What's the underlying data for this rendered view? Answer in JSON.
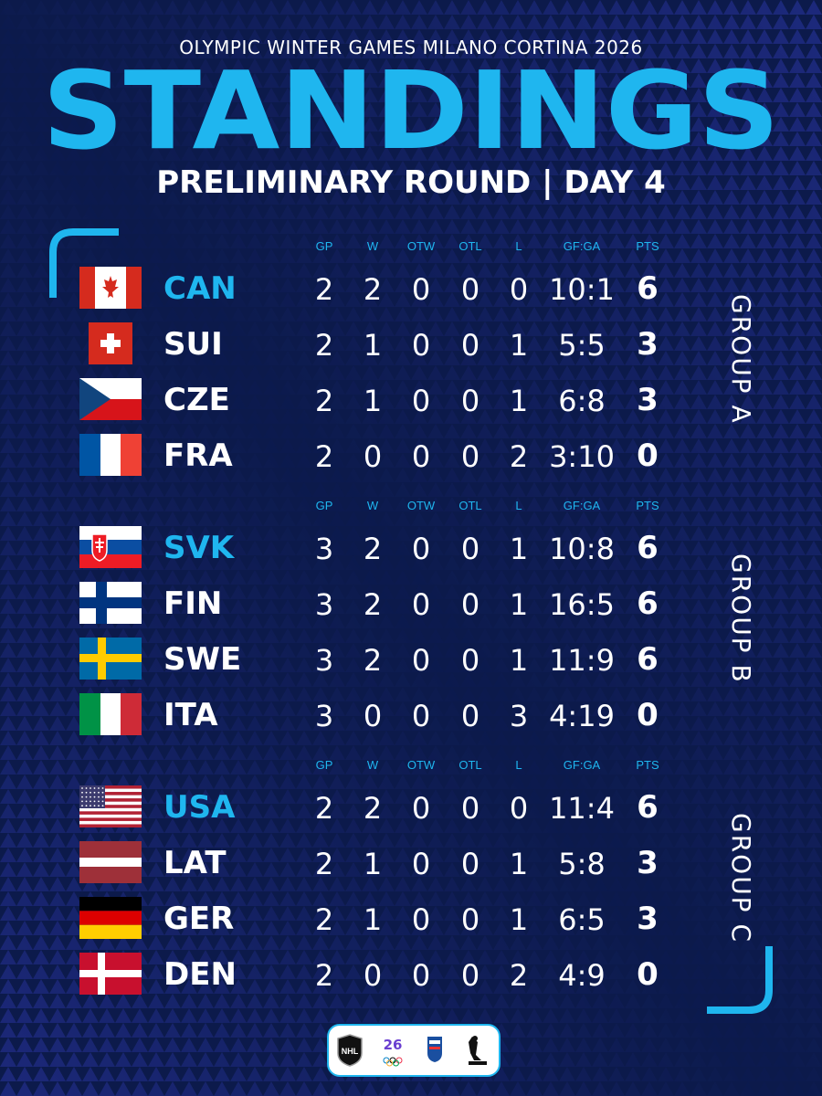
{
  "kicker": "OLYMPIC WINTER GAMES MILANO CORTINA 2026",
  "title": "STANDINGS",
  "subtitle": "PRELIMINARY ROUND | DAY 4",
  "columns": [
    "GP",
    "W",
    "OTW",
    "OTL",
    "L",
    "GF:GA",
    "PTS"
  ],
  "colors": {
    "accent": "#1fb6ef",
    "background": "#0c1a4b",
    "text": "#ffffff"
  },
  "groups": [
    {
      "label": "GROUP A",
      "teams": [
        {
          "code": "CAN",
          "flag": "canada-flag",
          "gp": "2",
          "w": "2",
          "otw": "0",
          "otl": "0",
          "l": "0",
          "gfga": "10:1",
          "pts": "6"
        },
        {
          "code": "SUI",
          "flag": "switzerland-flag",
          "gp": "2",
          "w": "1",
          "otw": "0",
          "otl": "0",
          "l": "1",
          "gfga": "5:5",
          "pts": "3"
        },
        {
          "code": "CZE",
          "flag": "czechia-flag",
          "gp": "2",
          "w": "1",
          "otw": "0",
          "otl": "0",
          "l": "1",
          "gfga": "6:8",
          "pts": "3"
        },
        {
          "code": "FRA",
          "flag": "france-flag",
          "gp": "2",
          "w": "0",
          "otw": "0",
          "otl": "0",
          "l": "2",
          "gfga": "3:10",
          "pts": "0"
        }
      ]
    },
    {
      "label": "GROUP B",
      "teams": [
        {
          "code": "SVK",
          "flag": "slovakia-flag",
          "gp": "3",
          "w": "2",
          "otw": "0",
          "otl": "0",
          "l": "1",
          "gfga": "10:8",
          "pts": "6"
        },
        {
          "code": "FIN",
          "flag": "finland-flag",
          "gp": "3",
          "w": "2",
          "otw": "0",
          "otl": "0",
          "l": "1",
          "gfga": "16:5",
          "pts": "6"
        },
        {
          "code": "SWE",
          "flag": "sweden-flag",
          "gp": "3",
          "w": "2",
          "otw": "0",
          "otl": "0",
          "l": "1",
          "gfga": "11:9",
          "pts": "6"
        },
        {
          "code": "ITA",
          "flag": "italy-flag",
          "gp": "3",
          "w": "0",
          "otw": "0",
          "otl": "0",
          "l": "3",
          "gfga": "4:19",
          "pts": "0"
        }
      ]
    },
    {
      "label": "GROUP C",
      "teams": [
        {
          "code": "USA",
          "flag": "usa-flag",
          "gp": "2",
          "w": "2",
          "otw": "0",
          "otl": "0",
          "l": "0",
          "gfga": "11:4",
          "pts": "6"
        },
        {
          "code": "LAT",
          "flag": "latvia-flag",
          "gp": "2",
          "w": "1",
          "otw": "0",
          "otl": "0",
          "l": "1",
          "gfga": "5:8",
          "pts": "3"
        },
        {
          "code": "GER",
          "flag": "germany-flag",
          "gp": "2",
          "w": "1",
          "otw": "0",
          "otl": "0",
          "l": "1",
          "gfga": "6:5",
          "pts": "3"
        },
        {
          "code": "DEN",
          "flag": "denmark-flag",
          "gp": "2",
          "w": "0",
          "otw": "0",
          "otl": "0",
          "l": "2",
          "gfga": "4:9",
          "pts": "0"
        }
      ]
    }
  ],
  "logos": [
    "nhl-logo",
    "milano-cortina-2026-logo",
    "iihf-logo",
    "nhlpa-logo"
  ]
}
